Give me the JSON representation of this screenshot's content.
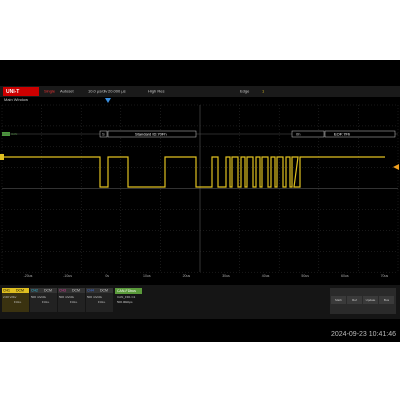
{
  "toolbar": {
    "logo": "UNI-T",
    "run_state": "Single",
    "autoset": "Autoset",
    "timebase": "10.0 μs/div",
    "delay": "20.000 μs",
    "acquire": "High Res",
    "trigger_type": "Edge",
    "trigger_ch": "1"
  },
  "window_title": "Main Window",
  "decode": {
    "bus_tag": "CAN",
    "sof": "S",
    "id_field": "Standard ID:70Fh",
    "data_field": "0h",
    "eof_field": "EOF:7Fh"
  },
  "time_labels": [
    "-20us",
    "-10us",
    "0s",
    "10us",
    "20us",
    "30us",
    "40us",
    "50us",
    "60us",
    "70us"
  ],
  "channels": [
    {
      "name": "CH1",
      "coupling": "DCM",
      "scale": "2.00 V/div",
      "bw": "FULL"
    },
    {
      "name": "CH2",
      "coupling": "DCM",
      "scale": "500 mV/div",
      "bw": "FULL"
    },
    {
      "name": "CH3",
      "coupling": "DCM",
      "scale": "500 mV/div",
      "bw": "FULL"
    },
    {
      "name": "CH4",
      "coupling": "DCM",
      "scale": "500 mV/div",
      "bw": "FULL"
    }
  ],
  "bus_panel": {
    "title": "CAN-FDbus",
    "source": "CAN_FD1 C1",
    "rate": "500.00kbps"
  },
  "menu_buttons": [
    "Math",
    "Ref",
    "Update",
    "Bus"
  ],
  "datetime": "2024-09-23 10:41:46"
}
